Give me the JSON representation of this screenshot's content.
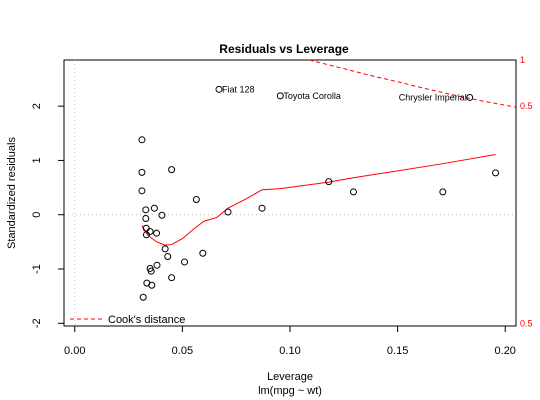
{
  "chart_data": {
    "type": "scatter",
    "title": "Residuals vs Leverage",
    "xlabel": "Leverage",
    "xsublabel": "lm(mpg ~ wt)",
    "ylabel": "Standardized residuals",
    "xlim": [
      -0.005,
      0.205
    ],
    "ylim": [
      -2.05,
      2.85
    ],
    "xticks": [
      "0.00",
      "0.05",
      "0.10",
      "0.15",
      "0.20"
    ],
    "xtick_values": [
      0.0,
      0.05,
      0.1,
      0.15,
      0.2
    ],
    "yticks": [
      "-2",
      "-1",
      "0",
      "1",
      "2"
    ],
    "ytick_values": [
      -2,
      -1,
      0,
      1,
      2
    ],
    "points": [
      {
        "x": 0.0312,
        "y": 1.38
      },
      {
        "x": 0.0312,
        "y": 0.78
      },
      {
        "x": 0.0312,
        "y": 0.44
      },
      {
        "x": 0.0318,
        "y": -1.52
      },
      {
        "x": 0.033,
        "y": 0.09
      },
      {
        "x": 0.033,
        "y": -0.07
      },
      {
        "x": 0.0332,
        "y": -0.25
      },
      {
        "x": 0.0333,
        "y": -0.37
      },
      {
        "x": 0.0335,
        "y": -1.26
      },
      {
        "x": 0.035,
        "y": -0.31
      },
      {
        "x": 0.035,
        "y": -0.99
      },
      {
        "x": 0.0355,
        "y": -1.04
      },
      {
        "x": 0.0358,
        "y": -1.3
      },
      {
        "x": 0.037,
        "y": 0.12
      },
      {
        "x": 0.038,
        "y": -0.34
      },
      {
        "x": 0.0382,
        "y": -0.93
      },
      {
        "x": 0.0405,
        "y": -0.01
      },
      {
        "x": 0.042,
        "y": -0.63
      },
      {
        "x": 0.0432,
        "y": -0.77
      },
      {
        "x": 0.045,
        "y": 0.83
      },
      {
        "x": 0.045,
        "y": -1.16
      },
      {
        "x": 0.051,
        "y": -0.87
      },
      {
        "x": 0.0565,
        "y": 0.28
      },
      {
        "x": 0.0595,
        "y": -0.71
      },
      {
        "x": 0.067,
        "y": 2.31
      },
      {
        "x": 0.0712,
        "y": 0.05
      },
      {
        "x": 0.087,
        "y": 0.12
      },
      {
        "x": 0.0955,
        "y": 2.19
      },
      {
        "x": 0.118,
        "y": 0.61
      },
      {
        "x": 0.1295,
        "y": 0.42
      },
      {
        "x": 0.171,
        "y": 0.42
      },
      {
        "x": 0.1835,
        "y": 2.16
      },
      {
        "x": 0.1955,
        "y": 0.77
      }
    ],
    "point_labels": [
      {
        "text": "Fiat 128",
        "x": 0.067,
        "y": 2.31
      },
      {
        "text": "Toyota Corolla",
        "x": 0.0955,
        "y": 2.19
      },
      {
        "text": "Chrysler Imperial",
        "x": 0.1835,
        "y": 2.16
      }
    ],
    "smooth_line": {
      "x": [
        0.0312,
        0.034,
        0.038,
        0.042,
        0.045,
        0.05,
        0.056,
        0.06,
        0.066,
        0.0712,
        0.08,
        0.087,
        0.0955,
        0.118,
        0.1295,
        0.171,
        0.1955
      ],
      "y": [
        -0.2,
        -0.38,
        -0.5,
        -0.56,
        -0.55,
        -0.44,
        -0.24,
        -0.12,
        -0.05,
        0.12,
        0.3,
        0.46,
        0.48,
        0.6,
        0.68,
        0.94,
        1.11
      ]
    },
    "cooks_distance": {
      "legend": "Cook's distance",
      "contours": [
        {
          "label": "1",
          "level": 1,
          "label_y": 2.85
        },
        {
          "label": "0.5",
          "level": 0.5,
          "label_y": 2.0
        },
        {
          "label": "0.5",
          "level": 0.5,
          "label_y": -2.0
        }
      ],
      "curve_x": [
        0.109,
        0.12,
        0.13,
        0.14,
        0.15,
        0.16,
        0.17,
        0.18,
        0.19,
        0.205
      ],
      "curve_y": [
        2.85,
        2.74,
        2.64,
        2.54,
        2.45,
        2.35,
        2.26,
        2.17,
        2.09,
        1.98
      ]
    },
    "colors": {
      "points": "#000000",
      "smooth": "#ff0000",
      "cook": "#ff0000",
      "reference_lines": "#bebebe"
    },
    "legend_position": "bottom-left",
    "grid": false
  }
}
